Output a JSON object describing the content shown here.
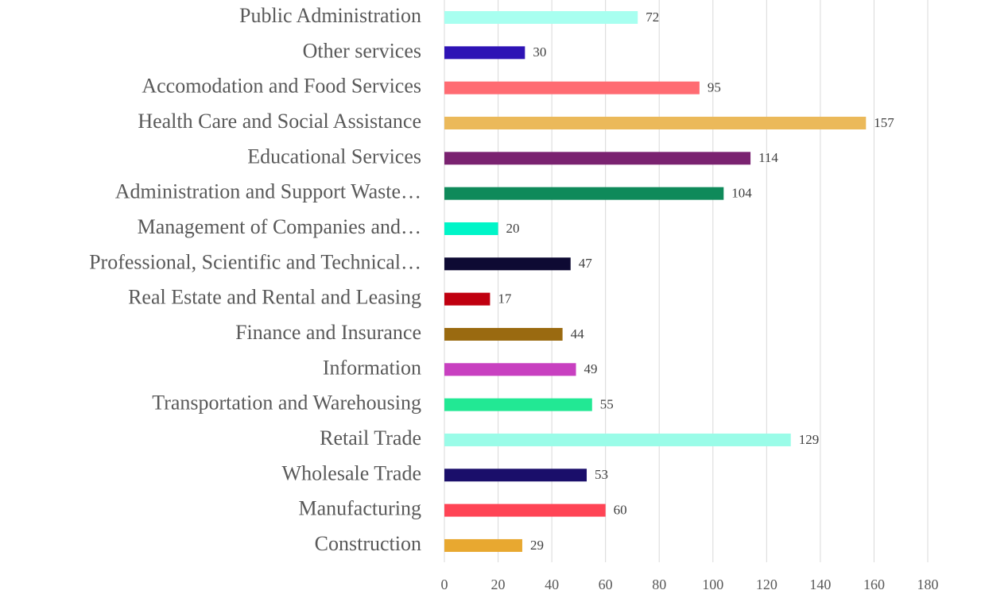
{
  "chart_data": {
    "type": "hbar",
    "categories": [
      "Public Administration",
      "Other services",
      "Accomodation and Food Services",
      "Health Care and Social Assistance",
      "Educational Services",
      "Administration and Support Waste…",
      "Management of Companies and…",
      "Professional, Scientific and Technical…",
      "Real Estate and Rental and Leasing",
      "Finance and Insurance",
      "Information",
      "Transportation and Warehousing",
      "Retail Trade",
      "Wholesale Trade",
      "Manufacturing",
      "Construction"
    ],
    "values": [
      72,
      30,
      95,
      157,
      114,
      104,
      20,
      47,
      17,
      44,
      49,
      55,
      129,
      53,
      60,
      29
    ],
    "colors": [
      "#a8fff0",
      "#2e13b5",
      "#ff6b72",
      "#ebb95a",
      "#7a2270",
      "#0f8a5a",
      "#00f5c8",
      "#0e0a33",
      "#c00010",
      "#9a6a10",
      "#c840c0",
      "#22e894",
      "#9afce8",
      "#1a0e6a",
      "#ff4455",
      "#e8a830"
    ],
    "xlim": [
      0,
      180
    ],
    "xticks": [
      0,
      20,
      40,
      60,
      80,
      100,
      120,
      140,
      160,
      180
    ],
    "grid": true
  }
}
